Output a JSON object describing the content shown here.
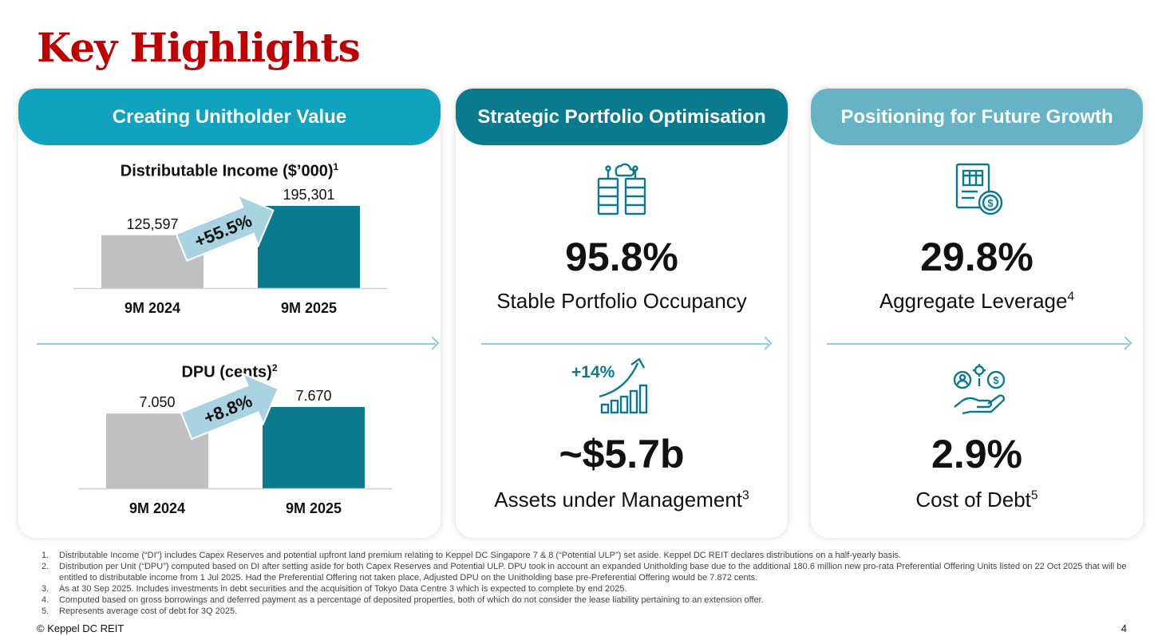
{
  "title": "Key Highlights",
  "colors": {
    "title": "#c00000",
    "header1": "#0fa3c0",
    "header2": "#0a7a8f",
    "header3": "#66b3c5",
    "bar_prior": "#bfc0c2",
    "bar_current": "#0a7a8f",
    "growth_arrow": "#a9d3e0",
    "icon": "#0a7a8f"
  },
  "panels": [
    {
      "header": "Creating Unitholder Value",
      "charts": [
        {
          "title": "Distributable Income ($’000)",
          "title_sup": "1",
          "growth": "+55.5%"
        },
        {
          "title": "DPU (cents)",
          "title_sup": "2",
          "growth": "+8.8%"
        }
      ]
    },
    {
      "header": "Strategic Portfolio Optimisation",
      "metrics": [
        {
          "icon": "data-centre-cloud-icon",
          "value": "95.8%",
          "label": "Stable Portfolio Occupancy",
          "sup": ""
        },
        {
          "icon": "growth-chart-arrow-icon",
          "icon_text": "+14%",
          "value": "~$5.7b",
          "label": "Assets under Management",
          "sup": "3"
        }
      ]
    },
    {
      "header": "Positioning for Future Growth",
      "metrics": [
        {
          "icon": "document-dollar-icon",
          "value": "29.8%",
          "label": "Aggregate Leverage",
          "sup": "4"
        },
        {
          "icon": "hand-finance-icon",
          "value": "2.9%",
          "label": "Cost of Debt",
          "sup": "5"
        }
      ]
    }
  ],
  "chart_data": [
    {
      "type": "bar",
      "title": "Distributable Income ($’000)",
      "categories": [
        "9M 2024",
        "9M 2025"
      ],
      "values": [
        125597,
        195301
      ],
      "value_labels": [
        "125,597",
        "195,301"
      ],
      "annotation": "+55.5%"
    },
    {
      "type": "bar",
      "title": "DPU (cents)",
      "categories": [
        "9M 2024",
        "9M 2025"
      ],
      "values": [
        7.05,
        7.67
      ],
      "value_labels": [
        "7.050",
        "7.670"
      ],
      "annotation": "+8.8%"
    }
  ],
  "footnotes": [
    {
      "num": "1.",
      "text": "Distributable Income (“DI”) includes Capex Reserves and potential upfront land premium relating to Keppel DC Singapore 7 & 8 (“Potential ULP”) set aside. Keppel DC REIT declares distributions on a half-yearly basis."
    },
    {
      "num": "2.",
      "text": "Distribution per Unit (“DPU”) computed based on DI after setting aside for both Capex Reserves and Potential ULP. DPU took in account an expanded Unitholding base due to the additional 180.6 million new pro-rata Preferential Offering Units listed on 22 Oct 2025 that will be entitled to distributable income from 1 Jul 2025. Had the Preferential Offering not taken place, Adjusted DPU on the Unitholding base pre-Preferential Offering would be 7.872 cents."
    },
    {
      "num": "3.",
      "text": "As at 30 Sep 2025. Includes investments in debt securities and the acquisition of Tokyo Data Centre 3 which is expected to complete by end 2025."
    },
    {
      "num": "4.",
      "text": "Computed based on gross borrowings and deferred payment as a percentage of deposited properties, both of which do not consider the lease liability pertaining to an extension offer."
    },
    {
      "num": "5.",
      "text": "Represents average cost of debt for 3Q 2025."
    }
  ],
  "copyright": "© Keppel DC REIT",
  "page_number": "4"
}
